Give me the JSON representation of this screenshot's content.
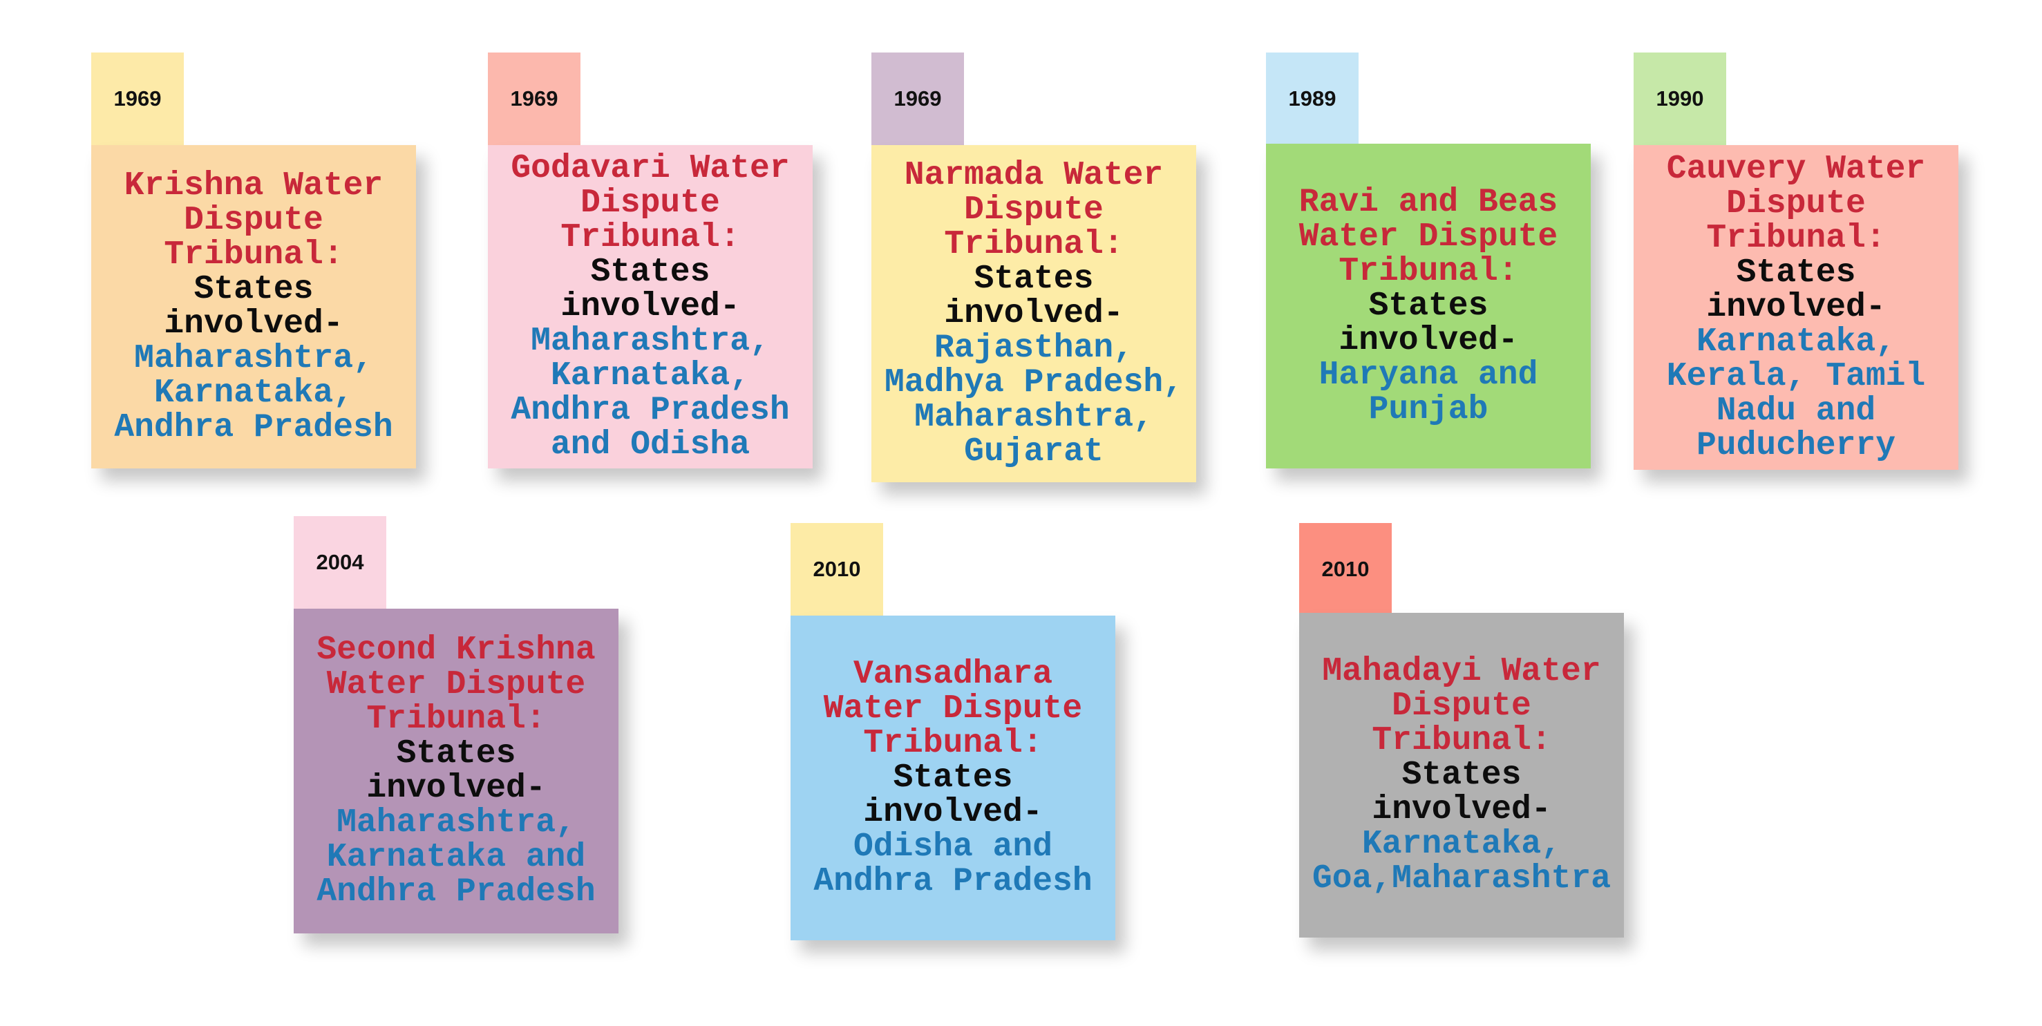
{
  "accent_colors": {
    "title": "#c8283a",
    "label": "#0d0d0d",
    "states": "#1f79b7"
  },
  "tribunals": [
    {
      "year": "1969",
      "tab_color": "#fdeaa8",
      "card_color": "#fbd9a6",
      "title_lines": [
        "Krishna Water",
        "Dispute",
        "Tribunal:"
      ],
      "label_lines": [
        "States",
        "involved-"
      ],
      "states_lines": [
        "Maharashtra,",
        "Karnataka,",
        "Andhra Pradesh"
      ]
    },
    {
      "year": "1969",
      "tab_color": "#fcb8ad",
      "card_color": "#fad1dc",
      "title_lines": [
        "Godavari Water",
        "Dispute",
        "Tribunal:"
      ],
      "label_lines": [
        "States",
        "involved-"
      ],
      "states_lines": [
        "Maharashtra,",
        "Karnataka,",
        "Andhra Pradesh",
        "and Odisha"
      ]
    },
    {
      "year": "1969",
      "tab_color": "#d1bcd1",
      "card_color": "#fdeca7",
      "title_lines": [
        "Narmada Water",
        "Dispute",
        "Tribunal:"
      ],
      "label_lines": [
        "States",
        "involved-"
      ],
      "states_lines": [
        "Rajasthan,",
        "Madhya Pradesh,",
        "Maharashtra,",
        "Gujarat"
      ]
    },
    {
      "year": "1989",
      "tab_color": "#c5e6f7",
      "card_color": "#a2da78",
      "title_lines": [
        "Ravi and Beas",
        "Water Dispute",
        "Tribunal:"
      ],
      "label_lines": [
        "States",
        "involved-"
      ],
      "states_lines": [
        "Haryana and",
        "Punjab"
      ]
    },
    {
      "year": "1990",
      "tab_color": "#c6e8a8",
      "card_color": "#fdbbb0",
      "title_lines": [
        "Cauvery Water",
        "Dispute",
        "Tribunal:"
      ],
      "label_lines": [
        "States",
        "involved-"
      ],
      "states_lines": [
        "Karnataka,",
        "Kerala, Tamil",
        "Nadu and",
        "Puducherry"
      ]
    },
    {
      "year": "2004",
      "tab_color": "#fad5e1",
      "card_color": "#b494b6",
      "title_lines": [
        "Second Krishna",
        "Water Dispute",
        "Tribunal:"
      ],
      "label_lines": [
        "States",
        "involved-"
      ],
      "states_lines": [
        "Maharashtra,",
        "Karnataka and",
        "Andhra Pradesh"
      ]
    },
    {
      "year": "2010",
      "tab_color": "#fdeba6",
      "card_color": "#9ed3f2",
      "title_lines": [
        "Vansadhara",
        "Water Dispute",
        "Tribunal:"
      ],
      "label_lines": [
        "States",
        "involved-"
      ],
      "states_lines": [
        "Odisha and",
        "Andhra Pradesh"
      ]
    },
    {
      "year": "2010",
      "tab_color": "#fc8f80",
      "card_color": "#b1b1b1",
      "title_lines": [
        "Mahadayi Water",
        "Dispute",
        "Tribunal:"
      ],
      "label_lines": [
        "States",
        "involved-"
      ],
      "states_lines": [
        "Karnataka,",
        "Goa,Maharashtra"
      ]
    }
  ]
}
